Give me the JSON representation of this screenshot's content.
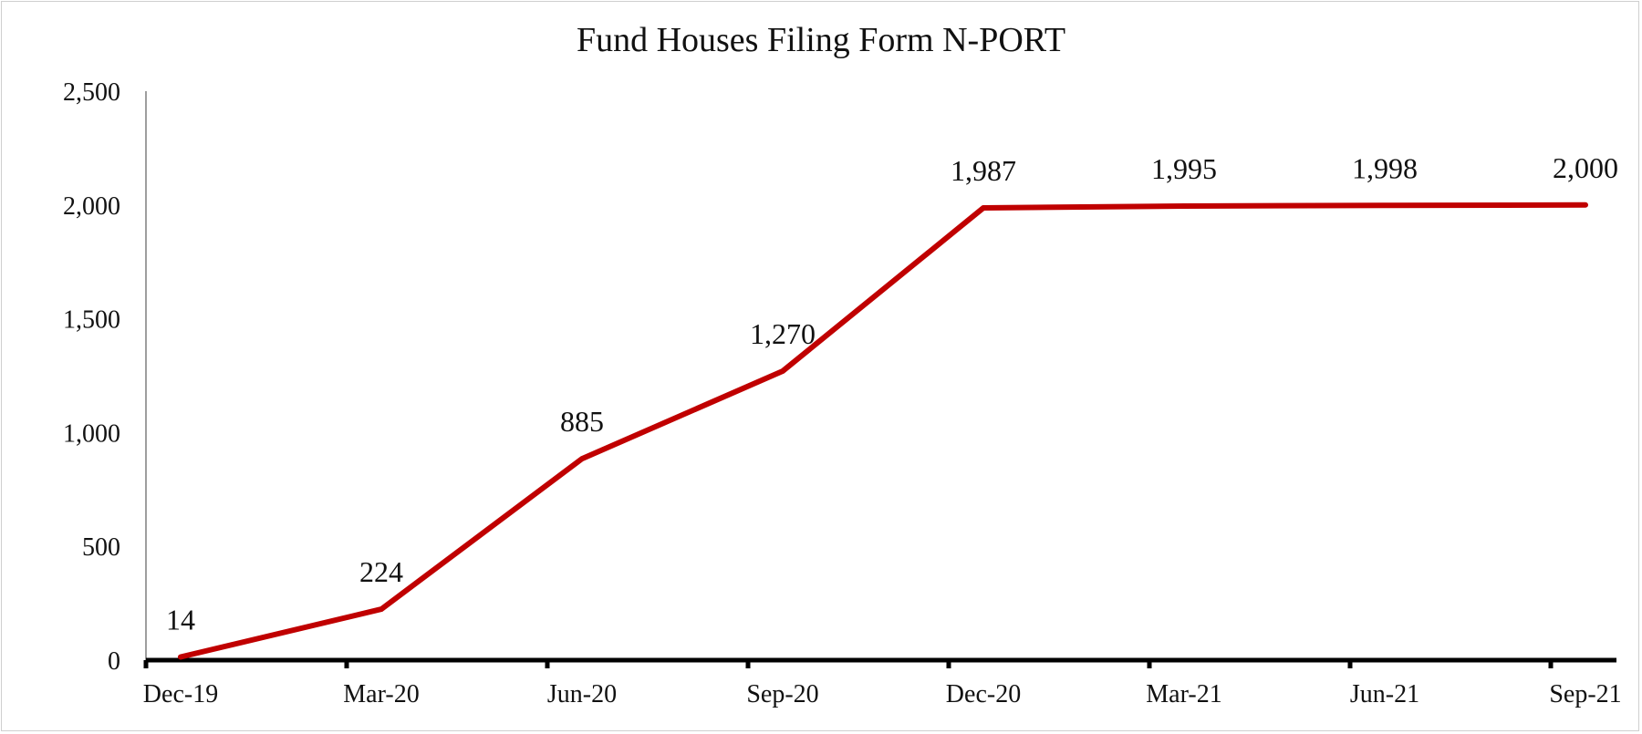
{
  "chart_data": {
    "type": "line",
    "title": "Fund Houses Filing Form N-PORT",
    "xlabel": "",
    "ylabel": "",
    "x": [
      "Dec-19",
      "Mar-20",
      "Jun-20",
      "Sep-20",
      "Dec-20",
      "Mar-21",
      "Jun-21",
      "Sep-21"
    ],
    "series": [
      {
        "values": [
          14,
          224,
          885,
          1270,
          1987,
          1995,
          1998,
          2000
        ],
        "labels": [
          "14",
          "224",
          "885",
          "1,270",
          "1,987",
          "1,995",
          "1,998",
          "2,000"
        ],
        "color": "#c00000"
      }
    ],
    "ylim": [
      0,
      2500
    ],
    "yticks": [
      0,
      500,
      1000,
      1500,
      2000,
      2500
    ],
    "ytick_labels": [
      "0",
      "500",
      "1,000",
      "1,500",
      "2,000",
      "2,500"
    ],
    "grid": false,
    "legend": "none"
  }
}
